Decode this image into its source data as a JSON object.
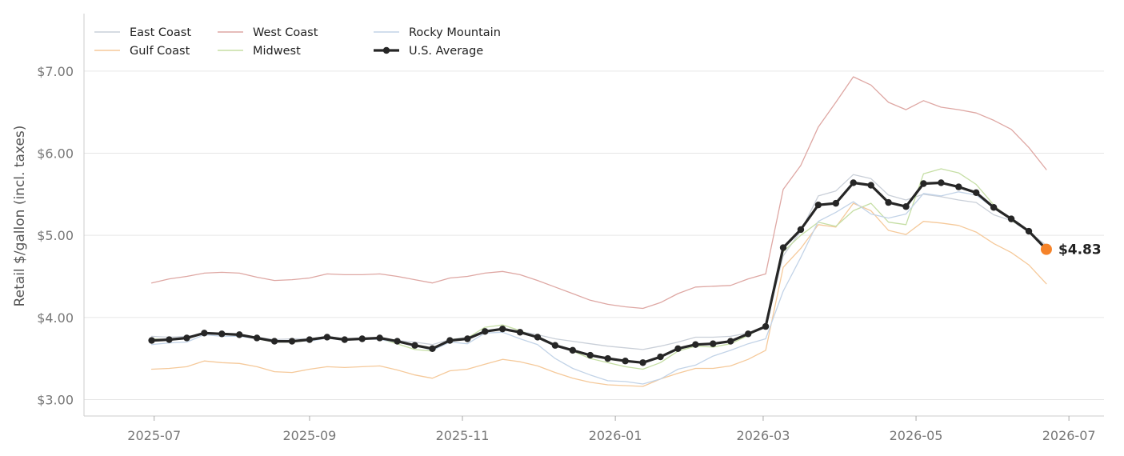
{
  "chart_data": {
    "type": "line",
    "title": "",
    "ylabel": "Retail $/gallon (incl. taxes)",
    "xlabel": "",
    "ylim": [
      2.8,
      7.7
    ],
    "xlim": [
      "2025-06-03",
      "2026-07-15"
    ],
    "grid": "horizontal",
    "legend_position": "top-left",
    "y_ticks": [
      {
        "value": 3.0,
        "label": "$3.00"
      },
      {
        "value": 4.0,
        "label": "$4.00"
      },
      {
        "value": 5.0,
        "label": "$5.00"
      },
      {
        "value": 6.0,
        "label": "$6.00"
      },
      {
        "value": 7.0,
        "label": "$7.00"
      }
    ],
    "x_ticks": [
      {
        "value": "2025-07-01",
        "label": "2025-07"
      },
      {
        "value": "2025-09-01",
        "label": "2025-09"
      },
      {
        "value": "2025-11-01",
        "label": "2025-11"
      },
      {
        "value": "2026-01-01",
        "label": "2026-01"
      },
      {
        "value": "2026-03-01",
        "label": "2026-03"
      },
      {
        "value": "2026-05-01",
        "label": "2026-05"
      },
      {
        "value": "2026-07-01",
        "label": "2026-07"
      }
    ],
    "x": [
      "2025-06-30",
      "2025-07-07",
      "2025-07-14",
      "2025-07-21",
      "2025-07-28",
      "2025-08-04",
      "2025-08-11",
      "2025-08-18",
      "2025-08-25",
      "2025-09-01",
      "2025-09-08",
      "2025-09-15",
      "2025-09-22",
      "2025-09-29",
      "2025-10-06",
      "2025-10-13",
      "2025-10-20",
      "2025-10-27",
      "2025-11-03",
      "2025-11-10",
      "2025-11-17",
      "2025-11-24",
      "2025-12-01",
      "2025-12-08",
      "2025-12-15",
      "2025-12-22",
      "2025-12-29",
      "2026-01-05",
      "2026-01-12",
      "2026-01-19",
      "2026-01-26",
      "2026-02-02",
      "2026-02-09",
      "2026-02-16",
      "2026-02-23",
      "2026-03-02",
      "2026-03-09",
      "2026-03-16",
      "2026-03-23",
      "2026-03-30",
      "2026-04-06",
      "2026-04-13",
      "2026-04-20",
      "2026-04-27",
      "2026-05-04",
      "2026-05-11",
      "2026-05-18",
      "2026-05-25",
      "2026-06-01",
      "2026-06-08",
      "2026-06-15",
      "2026-06-22"
    ],
    "series": [
      {
        "name": "East Coast",
        "color": "#c9cfd8",
        "width": 1.3,
        "values": [
          3.77,
          3.76,
          3.77,
          3.8,
          3.79,
          3.79,
          3.76,
          3.73,
          3.74,
          3.74,
          3.77,
          3.74,
          3.75,
          3.75,
          3.72,
          3.7,
          3.67,
          3.73,
          3.76,
          3.84,
          3.86,
          3.83,
          3.79,
          3.74,
          3.71,
          3.68,
          3.65,
          3.63,
          3.61,
          3.65,
          3.7,
          3.76,
          3.76,
          3.77,
          3.81,
          3.89,
          4.75,
          5.05,
          5.48,
          5.54,
          5.74,
          5.69,
          5.49,
          5.43,
          5.5,
          5.47,
          5.43,
          5.4,
          5.25,
          5.18,
          5.04,
          4.88
        ]
      },
      {
        "name": "Gulf Coast",
        "color": "#f5c99a",
        "width": 1.3,
        "values": [
          3.37,
          3.38,
          3.4,
          3.47,
          3.45,
          3.44,
          3.4,
          3.34,
          3.33,
          3.37,
          3.4,
          3.39,
          3.4,
          3.41,
          3.36,
          3.3,
          3.26,
          3.35,
          3.37,
          3.43,
          3.49,
          3.46,
          3.41,
          3.33,
          3.26,
          3.21,
          3.18,
          3.17,
          3.16,
          3.25,
          3.32,
          3.38,
          3.38,
          3.41,
          3.49,
          3.6,
          4.61,
          4.84,
          5.13,
          5.1,
          5.39,
          5.3,
          5.06,
          5.01,
          5.17,
          5.15,
          5.12,
          5.04,
          4.9,
          4.79,
          4.64,
          4.41
        ]
      },
      {
        "name": "West Coast",
        "color": "#dea7a3",
        "width": 1.3,
        "values": [
          4.42,
          4.47,
          4.5,
          4.54,
          4.55,
          4.54,
          4.49,
          4.45,
          4.46,
          4.48,
          4.53,
          4.52,
          4.52,
          4.53,
          4.5,
          4.46,
          4.42,
          4.48,
          4.5,
          4.54,
          4.56,
          4.52,
          4.45,
          4.37,
          4.29,
          4.21,
          4.16,
          4.13,
          4.11,
          4.18,
          4.29,
          4.37,
          4.38,
          4.39,
          4.47,
          4.53,
          5.56,
          5.85,
          6.32,
          6.62,
          6.93,
          6.83,
          6.62,
          6.53,
          6.64,
          6.56,
          6.53,
          6.49,
          6.4,
          6.29,
          6.07,
          5.8
        ]
      },
      {
        "name": "Midwest",
        "color": "#c5dea4",
        "width": 1.3,
        "values": [
          3.74,
          3.73,
          3.74,
          3.81,
          3.79,
          3.79,
          3.74,
          3.7,
          3.7,
          3.72,
          3.75,
          3.73,
          3.74,
          3.74,
          3.68,
          3.61,
          3.59,
          3.73,
          3.75,
          3.88,
          3.91,
          3.84,
          3.75,
          3.66,
          3.59,
          3.5,
          3.45,
          3.4,
          3.37,
          3.45,
          3.59,
          3.65,
          3.64,
          3.68,
          3.78,
          3.9,
          4.8,
          5.0,
          5.16,
          5.11,
          5.3,
          5.39,
          5.16,
          5.13,
          5.75,
          5.81,
          5.76,
          5.62,
          5.37,
          5.18,
          5.06,
          4.82
        ]
      },
      {
        "name": "Rocky Mountain",
        "color": "#c2d3e7",
        "width": 1.3,
        "values": [
          3.67,
          3.69,
          3.7,
          3.79,
          3.77,
          3.77,
          3.74,
          3.72,
          3.72,
          3.71,
          3.75,
          3.72,
          3.74,
          3.73,
          3.7,
          3.66,
          3.6,
          3.7,
          3.68,
          3.81,
          3.82,
          3.74,
          3.67,
          3.5,
          3.38,
          3.3,
          3.23,
          3.22,
          3.19,
          3.25,
          3.37,
          3.42,
          3.53,
          3.6,
          3.68,
          3.74,
          4.32,
          4.73,
          5.17,
          5.28,
          5.41,
          5.26,
          5.21,
          5.26,
          5.51,
          5.48,
          5.53,
          5.49,
          5.33,
          5.19,
          5.05,
          4.85
        ]
      },
      {
        "name": "U.S. Average",
        "color": "#262626",
        "width": 3.2,
        "markers": true,
        "values": [
          3.72,
          3.73,
          3.75,
          3.81,
          3.8,
          3.79,
          3.75,
          3.71,
          3.71,
          3.73,
          3.76,
          3.73,
          3.74,
          3.75,
          3.71,
          3.66,
          3.62,
          3.72,
          3.74,
          3.83,
          3.86,
          3.82,
          3.76,
          3.66,
          3.6,
          3.54,
          3.5,
          3.47,
          3.45,
          3.52,
          3.62,
          3.67,
          3.68,
          3.71,
          3.8,
          3.89,
          4.85,
          5.07,
          5.37,
          5.39,
          5.64,
          5.61,
          5.4,
          5.35,
          5.63,
          5.64,
          5.59,
          5.52,
          5.34,
          5.2,
          5.05,
          4.83
        ]
      }
    ],
    "end_point": {
      "x": "2026-06-22",
      "value": 4.83,
      "label": "$4.83",
      "color": "#f5832a"
    }
  }
}
